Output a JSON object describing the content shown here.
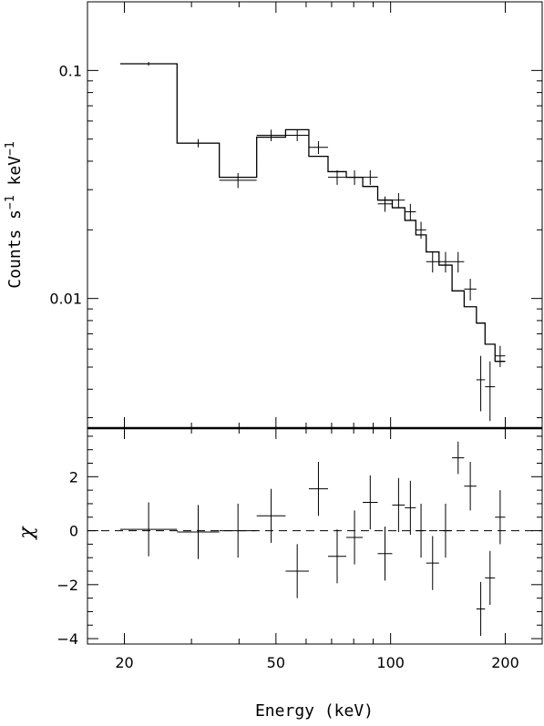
{
  "chart_data": {
    "type": "line",
    "xlabel": "Energy (keV)",
    "x_scale": "log",
    "xlim": [
      16,
      250
    ],
    "x_ticks": [
      {
        "value": 20,
        "label": "20"
      },
      {
        "value": 50,
        "label": "50"
      },
      {
        "value": 100,
        "label": "100"
      },
      {
        "value": 200,
        "label": "200"
      }
    ],
    "panels": [
      {
        "name": "spectrum",
        "ylabel_main": "Counts s",
        "ylabel_sup1": "−1",
        "ylabel_mid": " keV",
        "ylabel_sup2": "−1",
        "y_scale": "log",
        "ylim": [
          0.0027,
          0.2
        ],
        "y_ticks": [
          {
            "value": 0.01,
            "label": "0.01"
          },
          {
            "value": 0.1,
            "label": "0.1"
          }
        ],
        "data": [
          {
            "x0": 19.5,
            "x1": 27.5,
            "y": 0.107,
            "yerr": 0.002
          },
          {
            "x0": 27.5,
            "x1": 35.5,
            "y": 0.048,
            "yerr": 0.002
          },
          {
            "x0": 35.5,
            "x1": 44.5,
            "y": 0.033,
            "yerr": 0.0025
          },
          {
            "x0": 44.5,
            "x1": 53.0,
            "y": 0.052,
            "yerr": 0.003
          },
          {
            "x0": 53.0,
            "x1": 61.0,
            "y": 0.052,
            "yerr": 0.003
          },
          {
            "x0": 61.0,
            "x1": 68.5,
            "y": 0.046,
            "yerr": 0.003
          },
          {
            "x0": 68.5,
            "x1": 76.5,
            "y": 0.034,
            "yerr": 0.0025
          },
          {
            "x0": 76.5,
            "x1": 84.5,
            "y": 0.034,
            "yerr": 0.0025
          },
          {
            "x0": 84.5,
            "x1": 92.5,
            "y": 0.034,
            "yerr": 0.0025
          },
          {
            "x0": 92.5,
            "x1": 101.0,
            "y": 0.026,
            "yerr": 0.002
          },
          {
            "x0": 101.0,
            "x1": 109.0,
            "y": 0.027,
            "yerr": 0.002
          },
          {
            "x0": 109.0,
            "x1": 116.5,
            "y": 0.024,
            "yerr": 0.002
          },
          {
            "x0": 116.5,
            "x1": 124.0,
            "y": 0.02,
            "yerr": 0.0017
          },
          {
            "x0": 124.0,
            "x1": 134.0,
            "y": 0.0145,
            "yerr": 0.0015
          },
          {
            "x0": 134.0,
            "x1": 145.0,
            "y": 0.0145,
            "yerr": 0.0015
          },
          {
            "x0": 145.0,
            "x1": 156.0,
            "y": 0.0145,
            "yerr": 0.0015
          },
          {
            "x0": 156.0,
            "x1": 168.0,
            "y": 0.011,
            "yerr": 0.0012
          },
          {
            "x0": 168.0,
            "x1": 177.0,
            "y": 0.0044,
            "yerr": 0.0012
          },
          {
            "x0": 177.0,
            "x1": 188.0,
            "y": 0.0041,
            "yerr": 0.0012
          },
          {
            "x0": 188.0,
            "x1": 200.0,
            "y": 0.0056,
            "yerr": 0.0006
          }
        ],
        "model": [
          {
            "x0": 19.5,
            "x1": 27.5,
            "y": 0.107
          },
          {
            "x0": 27.5,
            "x1": 35.5,
            "y": 0.048
          },
          {
            "x0": 35.5,
            "x1": 44.5,
            "y": 0.034
          },
          {
            "x0": 44.5,
            "x1": 53.0,
            "y": 0.051
          },
          {
            "x0": 53.0,
            "x1": 61.0,
            "y": 0.055
          },
          {
            "x0": 61.0,
            "x1": 68.5,
            "y": 0.042
          },
          {
            "x0": 68.5,
            "x1": 76.5,
            "y": 0.036
          },
          {
            "x0": 76.5,
            "x1": 84.5,
            "y": 0.034
          },
          {
            "x0": 84.5,
            "x1": 92.5,
            "y": 0.031
          },
          {
            "x0": 92.5,
            "x1": 101.0,
            "y": 0.027
          },
          {
            "x0": 101.0,
            "x1": 109.0,
            "y": 0.025
          },
          {
            "x0": 109.0,
            "x1": 116.5,
            "y": 0.022
          },
          {
            "x0": 116.5,
            "x1": 124.0,
            "y": 0.019
          },
          {
            "x0": 124.0,
            "x1": 134.0,
            "y": 0.016
          },
          {
            "x0": 134.0,
            "x1": 145.0,
            "y": 0.014
          },
          {
            "x0": 145.0,
            "x1": 156.0,
            "y": 0.0108
          },
          {
            "x0": 156.0,
            "x1": 168.0,
            "y": 0.0092
          },
          {
            "x0": 168.0,
            "x1": 177.0,
            "y": 0.0078
          },
          {
            "x0": 177.0,
            "x1": 188.0,
            "y": 0.0063
          },
          {
            "x0": 188.0,
            "x1": 200.0,
            "y": 0.0053
          }
        ]
      },
      {
        "name": "residuals",
        "ylabel": "χ",
        "y_scale": "linear",
        "ylim": [
          -4.2,
          3.8
        ],
        "y_ticks": [
          {
            "value": -4,
            "label": "−4"
          },
          {
            "value": -2,
            "label": "−2"
          },
          {
            "value": 0,
            "label": "0"
          },
          {
            "value": 2,
            "label": "2"
          }
        ],
        "zero_line": "dashed",
        "data": [
          {
            "x0": 19.5,
            "x1": 27.5,
            "y": 0.05,
            "yerr": 1.0
          },
          {
            "x0": 27.5,
            "x1": 35.5,
            "y": -0.05,
            "yerr": 1.0
          },
          {
            "x0": 35.5,
            "x1": 44.5,
            "y": 0.0,
            "yerr": 1.0
          },
          {
            "x0": 44.5,
            "x1": 53.0,
            "y": 0.55,
            "yerr": 1.0
          },
          {
            "x0": 53.0,
            "x1": 61.0,
            "y": -1.5,
            "yerr": 1.0
          },
          {
            "x0": 61.0,
            "x1": 68.5,
            "y": 1.55,
            "yerr": 1.0
          },
          {
            "x0": 68.5,
            "x1": 76.5,
            "y": -0.95,
            "yerr": 1.0
          },
          {
            "x0": 76.5,
            "x1": 84.5,
            "y": -0.25,
            "yerr": 1.0
          },
          {
            "x0": 84.5,
            "x1": 92.5,
            "y": 1.05,
            "yerr": 1.0
          },
          {
            "x0": 92.5,
            "x1": 101.0,
            "y": -0.85,
            "yerr": 1.0
          },
          {
            "x0": 101.0,
            "x1": 109.0,
            "y": 0.95,
            "yerr": 1.0
          },
          {
            "x0": 109.0,
            "x1": 116.5,
            "y": 0.85,
            "yerr": 1.0
          },
          {
            "x0": 116.5,
            "x1": 124.0,
            "y": 0.0,
            "yerr": 1.0
          },
          {
            "x0": 124.0,
            "x1": 134.0,
            "y": -1.2,
            "yerr": 1.0
          },
          {
            "x0": 134.0,
            "x1": 145.0,
            "y": 0.0,
            "yerr": 1.0
          },
          {
            "x0": 145.0,
            "x1": 156.0,
            "y": 2.7,
            "yerr": 0.6
          },
          {
            "x0": 156.0,
            "x1": 168.0,
            "y": 1.65,
            "yerr": 0.9
          },
          {
            "x0": 168.0,
            "x1": 177.0,
            "y": -2.9,
            "yerr": 1.0
          },
          {
            "x0": 177.0,
            "x1": 188.0,
            "y": -1.75,
            "yerr": 1.0
          },
          {
            "x0": 188.0,
            "x1": 200.0,
            "y": 0.5,
            "yerr": 1.0
          }
        ]
      }
    ]
  }
}
